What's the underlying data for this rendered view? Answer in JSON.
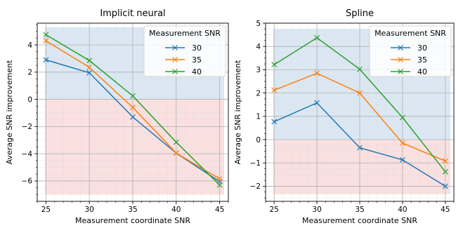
{
  "chart_data": [
    {
      "type": "line",
      "title": "Implicit neural",
      "xlabel": "Measurement coordinate SNR",
      "ylabel": "Average SNR improvement",
      "x": [
        25,
        30,
        35,
        40,
        45
      ],
      "xticks": [
        25,
        30,
        35,
        40,
        45
      ],
      "yticks": [
        4,
        2,
        0,
        -2,
        -4,
        -6
      ],
      "ylim": [
        -7.5,
        5.6
      ],
      "xlim": [
        24,
        46
      ],
      "grid": true,
      "legend": {
        "title": "Measurement SNR",
        "placement": "top-right"
      },
      "shading": {
        "positive_color": "#cfe0ef",
        "negative_color": "#f8d6d6"
      },
      "series": [
        {
          "name": "30",
          "color": "#1f77b4",
          "values": [
            2.9,
            1.95,
            -1.3,
            -3.95,
            -6.05
          ]
        },
        {
          "name": "35",
          "color": "#ff7f0e",
          "values": [
            4.3,
            2.35,
            -0.6,
            -3.95,
            -5.85
          ]
        },
        {
          "name": "40",
          "color": "#2ca02c",
          "values": [
            4.75,
            2.85,
            0.25,
            -3.15,
            -6.3
          ]
        }
      ]
    },
    {
      "type": "line",
      "title": "Spline",
      "xlabel": "Measurement coordinate SNR",
      "ylabel": "Average SNR improvement",
      "x": [
        25,
        30,
        35,
        40,
        45
      ],
      "xticks": [
        25,
        30,
        35,
        40,
        45
      ],
      "yticks": [
        5,
        4,
        3,
        2,
        1,
        0,
        -1,
        -2
      ],
      "ylim": [
        -2.65,
        5
      ],
      "xlim": [
        24,
        46
      ],
      "grid": true,
      "legend": {
        "title": "Measurement SNR",
        "placement": "top-right"
      },
      "shading": {
        "positive_color": "#cfe0ef",
        "negative_color": "#f8d6d6"
      },
      "series": [
        {
          "name": "30",
          "color": "#1f77b4",
          "values": [
            0.77,
            1.58,
            -0.35,
            -0.87,
            -2.0
          ]
        },
        {
          "name": "35",
          "color": "#ff7f0e",
          "values": [
            2.12,
            2.85,
            2.0,
            -0.15,
            -0.92
          ]
        },
        {
          "name": "40",
          "color": "#2ca02c",
          "values": [
            3.22,
            4.37,
            3.02,
            0.95,
            -1.38
          ]
        }
      ]
    }
  ]
}
